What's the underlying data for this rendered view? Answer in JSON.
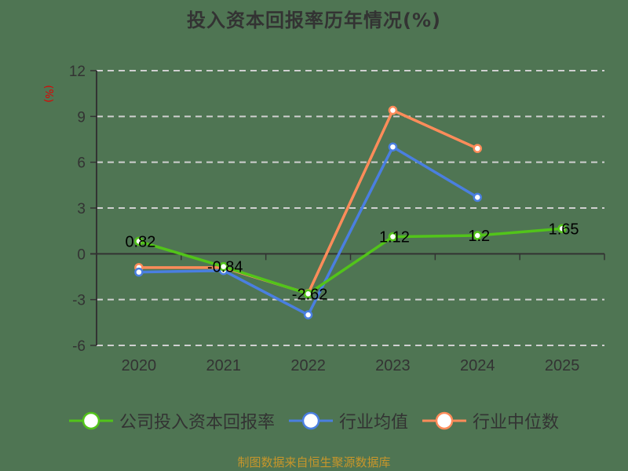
{
  "title": "投入资本回报率历年情况(%)",
  "unit_label": "(%)",
  "source": "制图数据来自恒生聚源数据库",
  "colors": {
    "background": "#4f7553",
    "company": "#52c41a",
    "industry_avg": "#4a7fe0",
    "industry_median": "#ff8c5a",
    "axis": "#333333",
    "grid": "#d0d0d0",
    "unit": "#e00000",
    "source": "#c8962a"
  },
  "legend": [
    {
      "name": "公司投入资本回报率",
      "color": "#52c41a"
    },
    {
      "name": "行业均值",
      "color": "#4a7fe0"
    },
    {
      "name": "行业中位数",
      "color": "#ff8c5a"
    }
  ],
  "chart_data": {
    "type": "line",
    "title": "投入资本回报率历年情况(%)",
    "xlabel": "",
    "ylabel": "(%)",
    "categories": [
      "2020",
      "2021",
      "2022",
      "2023",
      "2024",
      "2025"
    ],
    "yticks": [
      12,
      9,
      6,
      3,
      0,
      -3,
      -6
    ],
    "ylim": [
      -6,
      12
    ],
    "grid": "horizontal dashed",
    "legend_position": "bottom",
    "series": [
      {
        "name": "公司投入资本回报率",
        "values": [
          0.82,
          -0.84,
          -2.62,
          1.12,
          1.2,
          1.65
        ],
        "labels": [
          "0.82",
          "-0.84",
          "-2.62",
          "1.12",
          "1.2",
          "1.65"
        ]
      },
      {
        "name": "行业均值",
        "values": [
          -1.2,
          -1.1,
          -4.0,
          7.0,
          3.7,
          null
        ]
      },
      {
        "name": "行业中位数",
        "values": [
          -0.9,
          -0.9,
          -2.6,
          9.4,
          6.9,
          null
        ]
      }
    ]
  }
}
